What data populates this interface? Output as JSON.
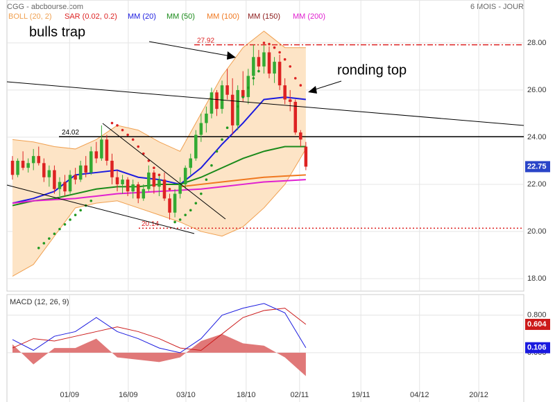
{
  "chart_data": [
    {
      "type": "candlestick",
      "title": "CGG - abcbourse.com",
      "subtitle": "6 MOIS - JOUR",
      "open": [
        23.0,
        22.4,
        23.0,
        22.7,
        22.9,
        23.2,
        22.9,
        22.3,
        22.6,
        21.8,
        22.1,
        21.7,
        22.4,
        22.2,
        22.8,
        22.5,
        23.4,
        23.1,
        23.9,
        23.0,
        22.3,
        22.0,
        22.2,
        21.7,
        22.0,
        21.4,
        21.8,
        22.5,
        21.9,
        22.2,
        21.4,
        20.8,
        21.6,
        22.0,
        22.7,
        23.1,
        24.1,
        24.6,
        25.0,
        25.9,
        25.2,
        26.2,
        25.8,
        24.5,
        26.0,
        25.7,
        26.6,
        27.4,
        27.0,
        27.6,
        26.7,
        27.2,
        26.2,
        25.6,
        25.5,
        24.2,
        23.6
      ],
      "high": [
        23.2,
        23.1,
        23.4,
        23.1,
        23.5,
        23.6,
        23.1,
        22.8,
        22.8,
        22.3,
        22.4,
        22.6,
        22.7,
        23.0,
        23.2,
        23.6,
        23.8,
        24.5,
        24.1,
        23.3,
        22.6,
        22.4,
        22.3,
        22.2,
        22.1,
        22.0,
        22.8,
        22.6,
        22.4,
        22.5,
        21.6,
        21.8,
        22.3,
        22.8,
        23.3,
        24.3,
        25.0,
        25.3,
        26.1,
        26.0,
        26.4,
        26.9,
        26.5,
        26.2,
        26.8,
        26.9,
        27.92,
        27.7,
        27.9,
        27.85,
        27.4,
        27.5,
        26.5,
        26.0,
        25.6,
        24.3,
        23.8
      ],
      "low": [
        22.2,
        22.3,
        22.6,
        22.5,
        22.6,
        22.8,
        22.1,
        21.9,
        21.6,
        21.5,
        21.5,
        21.6,
        22.0,
        22.1,
        22.3,
        22.4,
        22.9,
        23.0,
        22.8,
        22.0,
        21.7,
        21.6,
        21.5,
        21.4,
        21.2,
        21.3,
        21.7,
        21.6,
        21.5,
        21.3,
        20.5,
        20.6,
        21.4,
        21.8,
        22.4,
        23.0,
        23.8,
        24.2,
        24.8,
        24.9,
        25.0,
        25.6,
        24.1,
        24.3,
        25.5,
        25.4,
        26.2,
        26.8,
        26.7,
        26.5,
        26.3,
        26.0,
        25.4,
        25.1,
        24.1,
        23.6,
        22.6
      ],
      "close": [
        22.4,
        23.0,
        22.7,
        22.9,
        23.2,
        22.9,
        22.3,
        22.6,
        21.8,
        22.1,
        21.7,
        22.4,
        22.2,
        22.8,
        22.5,
        23.4,
        23.1,
        23.9,
        23.0,
        22.3,
        22.0,
        22.2,
        21.7,
        22.0,
        21.4,
        21.8,
        22.5,
        21.9,
        22.2,
        21.4,
        20.8,
        21.6,
        22.0,
        22.7,
        23.1,
        24.1,
        24.6,
        25.0,
        25.9,
        25.2,
        26.2,
        25.8,
        24.5,
        26.0,
        25.7,
        26.6,
        27.4,
        27.0,
        27.6,
        26.7,
        27.2,
        26.2,
        25.6,
        25.5,
        24.2,
        23.9,
        22.75
      ],
      "up_color": "#33aa33",
      "down_color": "#dd2222",
      "last_color": "#2a45c8",
      "xlim": [
        -1.06,
        97.6
      ],
      "xticks": [
        {
          "value": 10.9,
          "label": "01/09"
        },
        {
          "value": 22.1,
          "label": "16/09"
        },
        {
          "value": 33.1,
          "label": "03/10"
        },
        {
          "value": 44.6,
          "label": "18/10"
        },
        {
          "value": 54.8,
          "label": "02/11"
        },
        {
          "value": 66.5,
          "label": "19/11"
        },
        {
          "value": 77.7,
          "label": "04/12"
        },
        {
          "value": 89,
          "label": "20/12"
        }
      ],
      "ylim": [
        17.47,
        29.82
      ],
      "yticks": [
        {
          "value": 18,
          "label": "18.00"
        },
        {
          "value": 20,
          "label": "20.00"
        },
        {
          "value": 22,
          "label": "22.00"
        },
        {
          "value": 24,
          "label": "24.00"
        },
        {
          "value": 26,
          "label": "26.00"
        },
        {
          "value": 28,
          "label": "28.00"
        }
      ],
      "grid": true,
      "bands": {
        "name": "BOLL (20, 2)",
        "color": "#f0a050",
        "fill": "#fde4c6",
        "x": [
          0,
          4,
          8,
          12,
          16,
          20,
          24,
          28,
          32,
          36,
          40,
          44,
          48,
          52,
          56
        ],
        "upper": [
          23.9,
          23.8,
          23.6,
          23.5,
          23.9,
          24.5,
          24.3,
          23.8,
          23.4,
          25.0,
          26.6,
          27.8,
          28.5,
          27.8,
          27.8
        ],
        "lower": [
          18.1,
          18.6,
          19.8,
          21.0,
          21.2,
          21.3,
          21.0,
          20.7,
          20.4,
          20.0,
          19.8,
          20.2,
          21.0,
          22.0,
          23.5
        ]
      },
      "sar": {
        "name": "SAR (0.02, 0.2)",
        "color": "#dd2222",
        "up_color": "#229922",
        "values": [
          null,
          null,
          null,
          null,
          null,
          19.3,
          19.5,
          19.7,
          19.9,
          20.1,
          20.3,
          20.5,
          20.7,
          20.9,
          21.1,
          21.3,
          null,
          null,
          null,
          24.6,
          24.5,
          24.3,
          24.1,
          23.9,
          23.6,
          23.3,
          23.0,
          22.7,
          22.4,
          22.1,
          21.8,
          20.4,
          20.5,
          20.7,
          20.9,
          21.2,
          21.6,
          22.2,
          22.8,
          23.4,
          23.9,
          24.4,
          24.9,
          25.3,
          25.7,
          26.1,
          26.5,
          26.8,
          28.0,
          27.95,
          27.8,
          27.6,
          27.3,
          27.0,
          26.5,
          26.2,
          null
        ]
      },
      "series": [
        {
          "name": "MM (20)",
          "color": "#1a1adf",
          "x": [
            0,
            4,
            8,
            12,
            16,
            20,
            24,
            28,
            32,
            36,
            40,
            44,
            48,
            52,
            56
          ],
          "values": [
            21.2,
            21.4,
            21.7,
            22.4,
            22.5,
            22.6,
            22.3,
            22.2,
            22.0,
            22.7,
            23.7,
            24.6,
            25.6,
            25.7,
            25.6
          ]
        },
        {
          "name": "MM (50)",
          "color": "#1a8a1a",
          "x": [
            0,
            4,
            8,
            12,
            16,
            20,
            24,
            28,
            32,
            36,
            40,
            44,
            48,
            52,
            56
          ],
          "values": [
            21.1,
            21.3,
            21.4,
            21.6,
            21.8,
            21.9,
            21.9,
            22.0,
            22.0,
            22.3,
            22.7,
            23.1,
            23.4,
            23.6,
            23.6
          ]
        },
        {
          "name": "MM (100)",
          "color": "#f07820",
          "x": [
            32,
            36,
            40,
            44,
            48,
            52,
            56
          ],
          "values": [
            21.9,
            22.0,
            22.1,
            22.2,
            22.3,
            22.35,
            22.4
          ]
        },
        {
          "name": "MM (150)",
          "color": "#8b1a1a",
          "x": [],
          "values": []
        },
        {
          "name": "MM (200)",
          "color": "#e020d0",
          "x": [
            0,
            4,
            8,
            12,
            16,
            20,
            24,
            28,
            32,
            36,
            40,
            44,
            48,
            52,
            56
          ],
          "values": [
            21.2,
            21.3,
            21.35,
            21.4,
            21.5,
            21.6,
            21.65,
            21.7,
            21.75,
            21.8,
            21.9,
            22.0,
            22.1,
            22.15,
            22.2
          ]
        }
      ],
      "levels": [
        {
          "value": 27.92,
          "color": "#dd2222"
        },
        {
          "value": 24.02,
          "color": "#000000"
        },
        {
          "value": 20.14,
          "color": "#dd2222"
        }
      ],
      "annotations": [
        {
          "text": "bulls trap"
        },
        {
          "text": "ronding top"
        }
      ]
    },
    {
      "type": "macd",
      "title": "MACD (12, 26, 9)",
      "xlim": [
        -1.06,
        97.6
      ],
      "ylim": [
        -1.17,
        1.24
      ],
      "yticks": [
        {
          "value": 0,
          "label": "0.000"
        },
        {
          "value": 0.8,
          "label": "0.800"
        }
      ],
      "x": [
        0,
        4,
        8,
        12,
        16,
        20,
        24,
        28,
        32,
        36,
        40,
        44,
        48,
        52,
        56
      ],
      "macd": {
        "color": "#1a1adf",
        "values": [
          0.28,
          0.05,
          0.35,
          0.45,
          0.75,
          0.45,
          0.3,
          0.1,
          0.0,
          0.3,
          0.8,
          0.95,
          1.05,
          0.85,
          0.106
        ]
      },
      "signal": {
        "color": "#cc1a1a",
        "values": [
          0.1,
          0.3,
          0.25,
          0.35,
          0.45,
          0.55,
          0.45,
          0.3,
          0.1,
          0.05,
          0.4,
          0.75,
          0.9,
          0.95,
          0.604
        ]
      },
      "histogram": {
        "color": "#e07878",
        "values": [
          0.18,
          -0.25,
          0.1,
          0.1,
          0.3,
          -0.1,
          -0.15,
          -0.2,
          -0.1,
          0.25,
          0.4,
          0.2,
          0.15,
          -0.1,
          -0.5
        ]
      }
    }
  ]
}
